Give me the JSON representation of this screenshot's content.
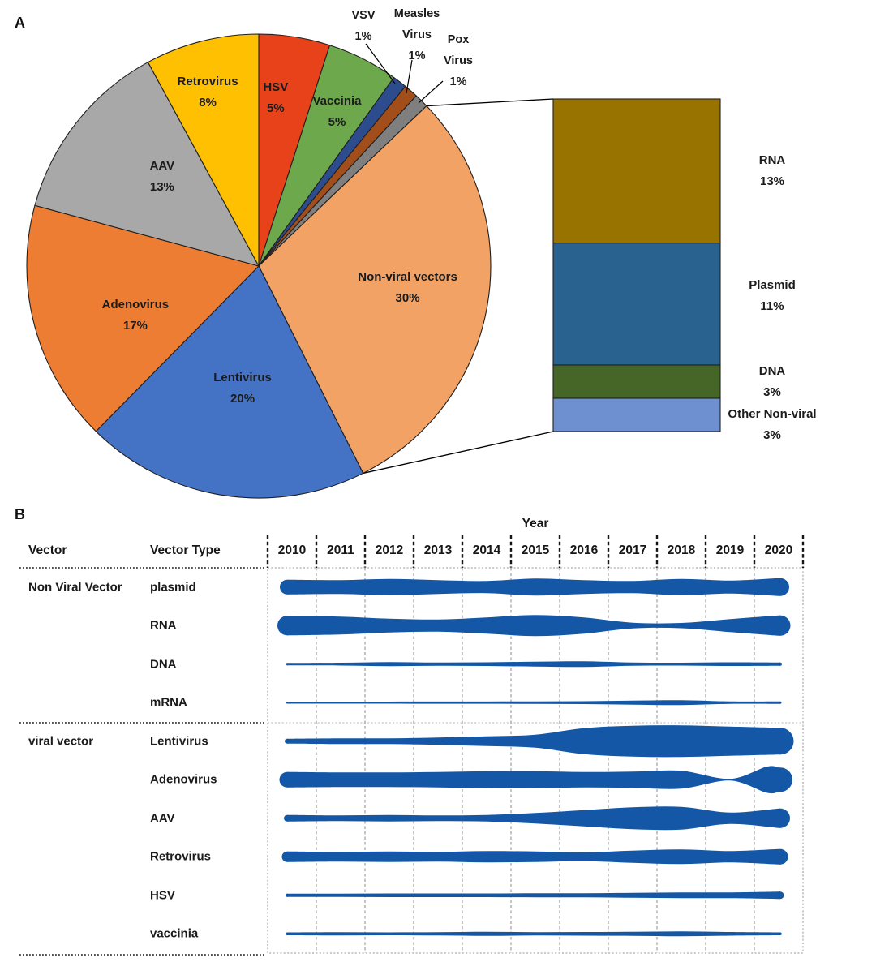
{
  "panels": {
    "a": "A",
    "b": "B"
  },
  "chart_data": [
    {
      "type": "pie",
      "panel": "A",
      "direction": "clockwise",
      "start_angle_deg": 0,
      "labels": [
        "HSV",
        "Vaccinia",
        "VSV",
        "Measles Virus",
        "Pox Virus",
        "Non-viral vectors",
        "Lentivirus",
        "Adenovirus",
        "AAV",
        "Retrovirus"
      ],
      "values_pct": [
        5,
        5,
        1,
        1,
        1,
        30,
        20,
        17,
        13,
        8
      ],
      "colors": [
        "#E8421A",
        "#6DA84C",
        "#2D4C8E",
        "#A24E1A",
        "#7F7F7F",
        "#F2A265",
        "#4472C4",
        "#EC7D33",
        "#A8A8A8",
        "#FEC001"
      ],
      "stroke": "#1f1f1f"
    },
    {
      "type": "bar",
      "subtype": "stacked-breakout",
      "panel": "A",
      "breakout_of": "Non-viral vectors",
      "categories": [
        "RNA",
        "Plasmid",
        "DNA",
        "Other Non-viral"
      ],
      "values_pct": [
        13,
        11,
        3,
        3
      ],
      "colors": [
        "#987300",
        "#29618F",
        "#466628",
        "#6E90D0"
      ],
      "stroke": "#1f1f1f"
    },
    {
      "type": "area",
      "subtype": "stream-timeline",
      "panel": "B",
      "title": "Year",
      "col_headers": [
        "Vector",
        "Vector Type"
      ],
      "years": [
        "2010",
        "2011",
        "2012",
        "2013",
        "2014",
        "2015",
        "2016",
        "2017",
        "2018",
        "2019",
        "2020"
      ],
      "stream_color": "#1357A6",
      "width_units": "px-thickness-at-year",
      "groups": [
        {
          "label": "Non Viral Vector",
          "rows": [
            {
              "label": "plasmid",
              "widths": [
                18,
                17,
                20,
                17,
                15,
                21,
                17,
                15,
                20,
                16,
                22
              ]
            },
            {
              "label": "RNA",
              "widths": [
                24,
                22,
                17,
                15,
                20,
                26,
                20,
                7,
                6.5,
                16,
                25
              ]
            },
            {
              "label": "DNA",
              "widths": [
                3,
                3.5,
                5,
                4,
                4.5,
                6,
                7,
                4,
                3.5,
                4.5,
                4
              ]
            },
            {
              "label": "mRNA",
              "widths": [
                2.5,
                2.5,
                2.5,
                2.8,
                2.8,
                3,
                3.5,
                5,
                6,
                3,
                3
              ]
            }
          ]
        },
        {
          "label": "viral vector",
          "rows": [
            {
              "label": "Lentivirus",
              "widths": [
                6,
                7,
                7,
                9,
                12,
                16,
                32,
                38,
                39,
                36,
                33
              ]
            },
            {
              "label": "Adenovirus",
              "x": [
                2010,
                2011,
                2012,
                2013,
                2014,
                2015,
                2016,
                2017,
                2018,
                2019,
                2019.75,
                2020
              ],
              "widths": [
                19,
                18,
                18,
                19,
                21,
                21,
                19,
                20,
                22,
                2,
                32,
                30
              ]
            },
            {
              "label": "AAV",
              "widths": [
                8,
                7,
                8,
                7,
                8,
                13,
                20,
                27,
                28,
                14,
                24
              ]
            },
            {
              "label": "Retrovirus",
              "widths": [
                13,
                12,
                13,
                12,
                14,
                13,
                11,
                15,
                18,
                14,
                19
              ]
            },
            {
              "label": "HSV",
              "widths": [
                4,
                4,
                4.5,
                4.5,
                4.5,
                5,
                5,
                6,
                7,
                7,
                9
              ]
            },
            {
              "label": "vaccinia",
              "widths": [
                3.5,
                4,
                3.5,
                4,
                5,
                4,
                4.5,
                5,
                6,
                4.5,
                3.5
              ]
            }
          ]
        }
      ]
    }
  ]
}
